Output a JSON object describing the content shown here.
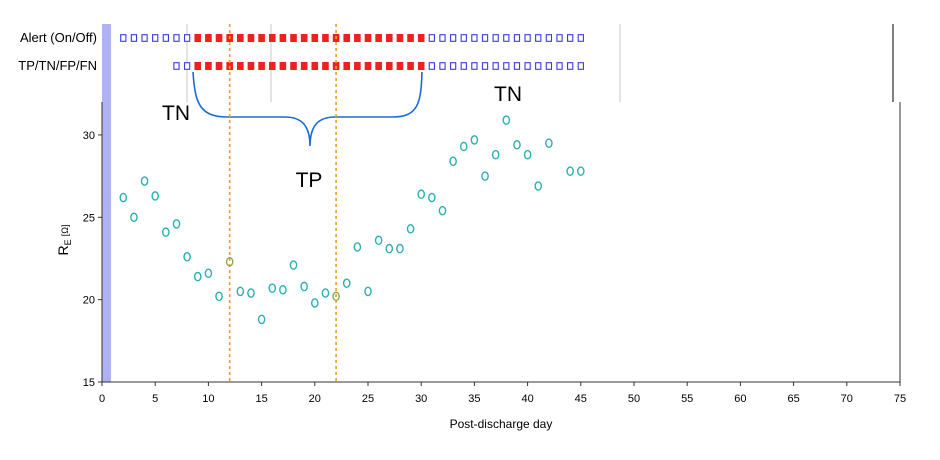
{
  "chart_data": {
    "type": "scatter",
    "xlabel": "Post-discharge day",
    "ylabel_main": "R",
    "ylabel_sub": "E",
    "ylabel_unit": "[Ω]",
    "xlim": [
      0,
      75
    ],
    "ylim": [
      15,
      32
    ],
    "x_ticks": [
      "0",
      "5",
      "10",
      "15",
      "20",
      "25",
      "30",
      "35",
      "40",
      "45",
      "50",
      "55",
      "60",
      "65",
      "70",
      "75"
    ],
    "y_ticks": [
      "15",
      "20",
      "25",
      "30"
    ],
    "vlines": [
      12,
      22
    ],
    "colors": {
      "point": "#2ab0b0",
      "point_highlight": "#8ea850",
      "vline": "#f0a020",
      "alert_on": "#ee2020",
      "alert_off": "#3a3ae0",
      "brace": "#1a6ad8",
      "left_band": "#aeb2f2"
    },
    "series": [
      {
        "x": [
          2,
          3,
          4,
          5,
          6,
          7,
          8,
          9,
          10,
          11,
          12,
          13,
          14,
          15,
          16,
          17,
          18,
          19,
          20,
          21,
          22,
          23,
          24,
          25,
          26,
          27,
          28,
          29,
          30,
          31,
          32,
          33,
          34,
          35,
          36,
          37,
          38,
          39,
          40,
          41,
          42,
          44,
          45
        ],
        "y": [
          26.2,
          25.0,
          27.2,
          26.3,
          24.1,
          24.6,
          22.6,
          21.4,
          21.6,
          20.2,
          22.3,
          20.5,
          20.4,
          18.8,
          20.7,
          20.6,
          22.1,
          20.8,
          19.8,
          20.4,
          20.2,
          21.0,
          23.2,
          20.5,
          23.6,
          23.1,
          23.1,
          24.3,
          26.4,
          26.2,
          25.4,
          28.4,
          29.3,
          29.7,
          27.5,
          28.8,
          30.9,
          29.4,
          28.8,
          26.9,
          29.5,
          27.8,
          27.8
        ]
      }
    ],
    "highlight_x": [
      12,
      22
    ],
    "alert_row": {
      "label": "Alert (On/Off)",
      "off_days_before": [
        2,
        3,
        4,
        5,
        6,
        7,
        8
      ],
      "on_days": [
        9,
        10,
        11,
        12,
        13,
        14,
        15,
        16,
        17,
        18,
        19,
        20,
        21,
        22,
        23,
        24,
        25,
        26,
        27,
        28,
        29,
        30
      ],
      "off_days_after": [
        31,
        32,
        33,
        34,
        35,
        36,
        37,
        38,
        39,
        40,
        41,
        42,
        43,
        44,
        45
      ]
    },
    "classification_row": {
      "label": "TP/TN/FP/FN",
      "off_days_before": [
        7,
        8
      ],
      "on_days": [
        9,
        10,
        11,
        12,
        13,
        14,
        15,
        16,
        17,
        18,
        19,
        20,
        21,
        22,
        23,
        24,
        25,
        26,
        27,
        28,
        29,
        30
      ],
      "off_days_after": [
        31,
        32,
        33,
        34,
        35,
        36,
        37,
        38,
        39,
        40,
        41,
        42,
        43,
        44,
        45
      ]
    },
    "annotations": {
      "tn_left": "TN",
      "tp": "TP",
      "tn_right": "TN"
    }
  }
}
